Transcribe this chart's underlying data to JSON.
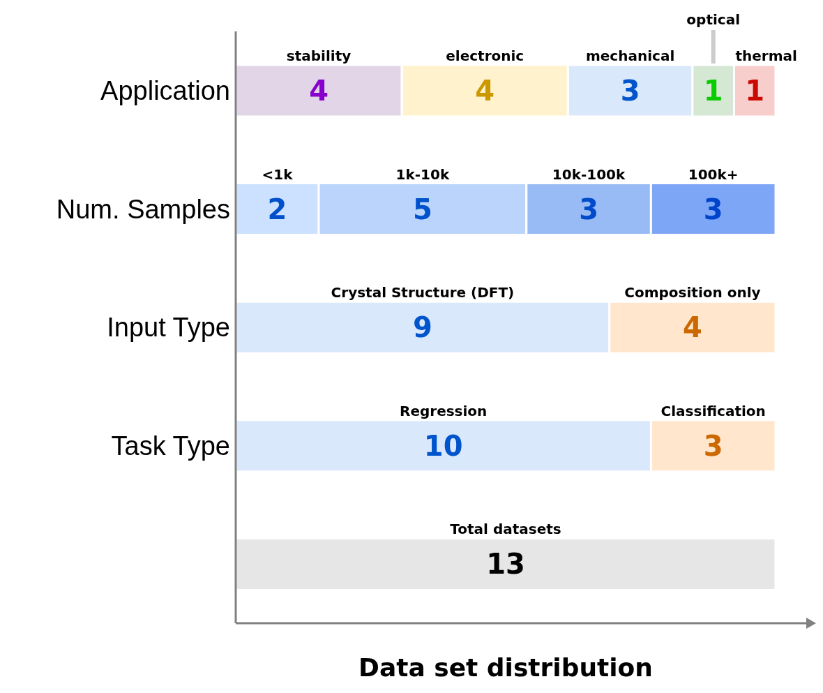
{
  "chart_data": {
    "type": "bar",
    "orientation": "horizontal",
    "stacked": true,
    "xlabel": "Data set distribution",
    "categories": [
      "Application",
      "Num. Samples",
      "Input Type",
      "Task Type",
      null
    ],
    "series": [
      {
        "name": "stability",
        "color": "#e1d5e7",
        "values": [
          4,
          null,
          null,
          null,
          null
        ]
      },
      {
        "name": "electronic",
        "color": "#fff2cc",
        "values": [
          4,
          null,
          null,
          null,
          null
        ]
      },
      {
        "name": "mechanical",
        "color": "#dae8fc",
        "values": [
          3,
          null,
          null,
          null,
          null
        ]
      },
      {
        "name": "optical",
        "color": "#d5e8d4",
        "values": [
          1,
          null,
          null,
          null,
          null
        ]
      },
      {
        "name": "thermal",
        "color": "#f8cecc",
        "values": [
          1,
          null,
          null,
          null,
          null
        ]
      },
      {
        "name": "<1k",
        "color": "#cce0ff",
        "values": [
          null,
          2,
          null,
          null,
          null
        ]
      },
      {
        "name": "1k-10k",
        "color": "#bad4fb",
        "values": [
          null,
          5,
          null,
          null,
          null
        ]
      },
      {
        "name": "10k-100k",
        "color": "#99bbf5",
        "values": [
          null,
          3,
          null,
          null,
          null
        ]
      },
      {
        "name": "100k+",
        "color": "#7ea6f6",
        "values": [
          null,
          3,
          null,
          null,
          null
        ]
      },
      {
        "name": "Crystal Structure (DFT)",
        "color": "#dae8fc",
        "values": [
          null,
          null,
          9,
          null,
          null
        ]
      },
      {
        "name": "Composition only",
        "color": "#ffe6cc",
        "values": [
          null,
          null,
          4,
          null,
          null
        ]
      },
      {
        "name": "Regression",
        "color": "#dae8fc",
        "values": [
          null,
          null,
          null,
          10,
          null
        ]
      },
      {
        "name": "Classification",
        "color": "#ffe6cc",
        "values": [
          null,
          null,
          null,
          3,
          null
        ]
      },
      {
        "name": "Total datasets",
        "color": "#e6e6e6",
        "values": [
          null,
          null,
          null,
          null,
          13
        ]
      }
    ],
    "xlim": [
      0,
      13
    ],
    "tick_labels": "y",
    "data_labels": true
  }
}
